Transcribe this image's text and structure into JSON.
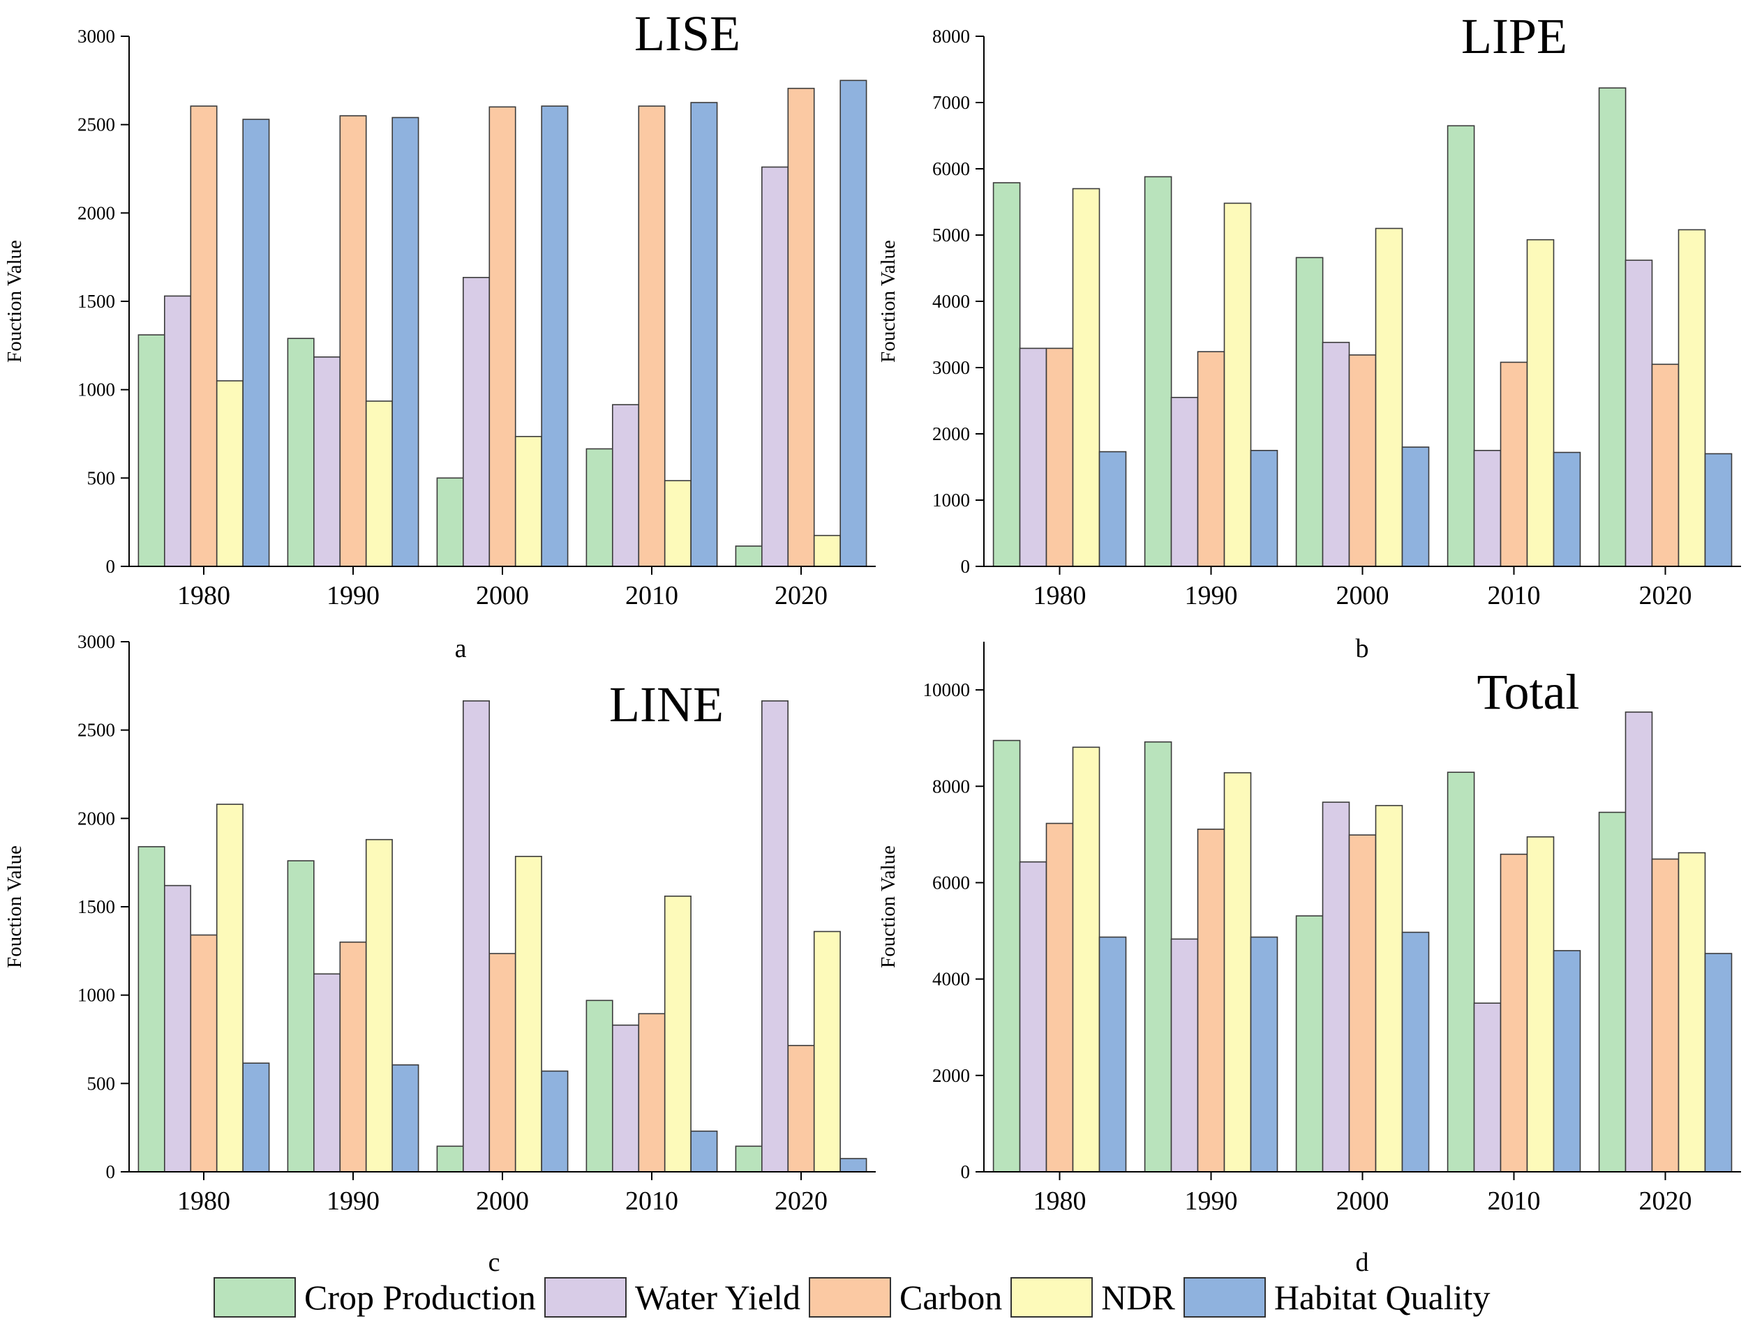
{
  "colors": {
    "Crop Production": "#b9e3bc",
    "Water Yield": "#d8cce7",
    "Carbon": "#fbc9a3",
    "NDR": "#fdfaba",
    "Habitat Quality": "#8fb2de",
    "stroke": "#3b3b3b"
  },
  "legend": [
    "Crop Production",
    "Water Yield",
    "Carbon",
    "NDR",
    "Habitat Quality"
  ],
  "chart_data": [
    {
      "type": "bar",
      "title": "LISE",
      "panel_label": "a",
      "ylabel": "Fouction Value",
      "xlabel": "",
      "ylim": [
        0,
        3000
      ],
      "yticks": [
        0,
        500,
        1000,
        1500,
        2000,
        2500,
        3000
      ],
      "categories": [
        "1980",
        "1990",
        "2000",
        "2010",
        "2020"
      ],
      "series": [
        {
          "name": "Crop Production",
          "values": [
            1310,
            1290,
            500,
            665,
            115
          ]
        },
        {
          "name": "Water Yield",
          "values": [
            1530,
            1185,
            1635,
            915,
            2260
          ]
        },
        {
          "name": "Carbon",
          "values": [
            2605,
            2550,
            2600,
            2605,
            2705
          ]
        },
        {
          "name": "NDR",
          "values": [
            1050,
            935,
            735,
            485,
            175
          ]
        },
        {
          "name": "Habitat Quality",
          "values": [
            2530,
            2540,
            2605,
            2625,
            2750
          ]
        }
      ]
    },
    {
      "type": "bar",
      "title": "LIPE",
      "panel_label": "b",
      "ylabel": "Fouction Value",
      "xlabel": "",
      "ylim": [
        0,
        8000
      ],
      "yticks": [
        0,
        1000,
        2000,
        3000,
        4000,
        5000,
        6000,
        7000,
        8000
      ],
      "categories": [
        "1980",
        "1990",
        "2000",
        "2010",
        "2020"
      ],
      "series": [
        {
          "name": "Crop Production",
          "values": [
            5790,
            5880,
            4660,
            6650,
            7220
          ]
        },
        {
          "name": "Water Yield",
          "values": [
            3290,
            2550,
            3380,
            1750,
            4620
          ]
        },
        {
          "name": "Carbon",
          "values": [
            3290,
            3240,
            3190,
            3080,
            3050
          ]
        },
        {
          "name": "NDR",
          "values": [
            5700,
            5480,
            5100,
            4930,
            5080
          ]
        },
        {
          "name": "Habitat Quality",
          "values": [
            1730,
            1750,
            1800,
            1720,
            1700
          ]
        }
      ]
    },
    {
      "type": "bar",
      "title": "LINE",
      "panel_label": "c",
      "ylabel": "Fouction Value",
      "xlabel": "",
      "ylim": [
        0,
        3000
      ],
      "yticks": [
        0,
        500,
        1000,
        1500,
        2000,
        2500,
        3000
      ],
      "categories": [
        "1980",
        "1990",
        "2000",
        "2010",
        "2020"
      ],
      "series": [
        {
          "name": "Crop Production",
          "values": [
            1840,
            1760,
            145,
            970,
            145
          ]
        },
        {
          "name": "Water Yield",
          "values": [
            1620,
            1120,
            2665,
            830,
            2665
          ]
        },
        {
          "name": "Carbon",
          "values": [
            1340,
            1300,
            1235,
            895,
            715
          ]
        },
        {
          "name": "NDR",
          "values": [
            2080,
            1880,
            1785,
            1560,
            1360
          ]
        },
        {
          "name": "Habitat Quality",
          "values": [
            615,
            605,
            570,
            230,
            75
          ]
        }
      ]
    },
    {
      "type": "bar",
      "title": "Total",
      "panel_label": "d",
      "ylabel": "Fouction Value",
      "xlabel": "",
      "ylim": [
        0,
        11000
      ],
      "yticks": [
        0,
        2000,
        4000,
        6000,
        8000,
        10000
      ],
      "categories": [
        "1980",
        "1990",
        "2000",
        "2010",
        "2020"
      ],
      "series": [
        {
          "name": "Crop Production",
          "values": [
            8950,
            8920,
            5310,
            8290,
            7460
          ]
        },
        {
          "name": "Water Yield",
          "values": [
            6430,
            4830,
            7670,
            3500,
            9540
          ]
        },
        {
          "name": "Carbon",
          "values": [
            7230,
            7110,
            6990,
            6590,
            6490
          ]
        },
        {
          "name": "NDR",
          "values": [
            8810,
            8280,
            7600,
            6950,
            6620
          ]
        },
        {
          "name": "Habitat Quality",
          "values": [
            4870,
            4870,
            4970,
            4590,
            4530
          ]
        }
      ]
    }
  ]
}
